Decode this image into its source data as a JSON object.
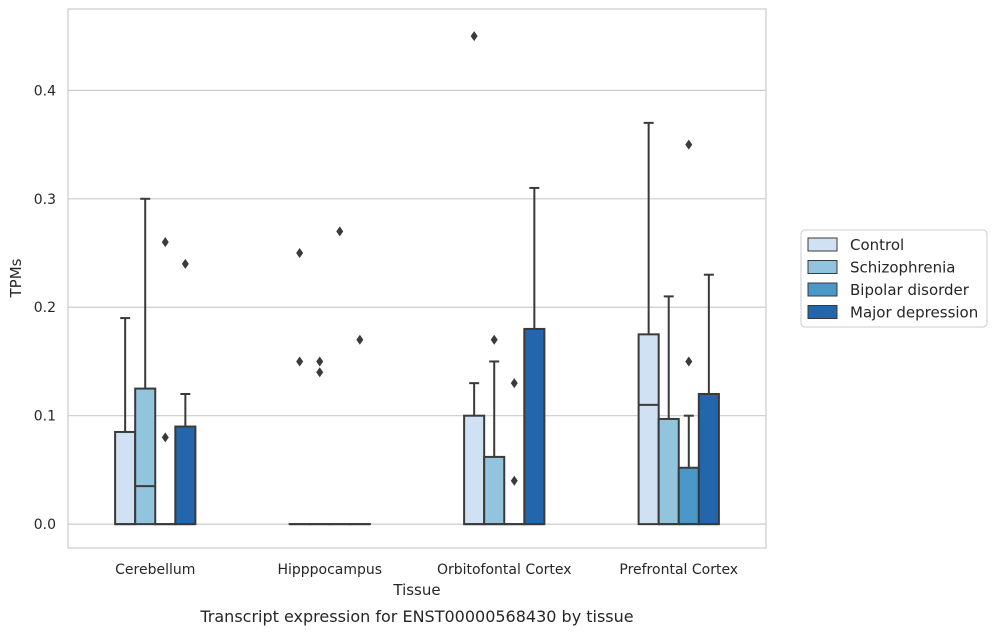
{
  "caption": "Transcript expression for ENST00000568430 by tissue",
  "chart_data": {
    "type": "boxplot",
    "xlabel": "Tissue",
    "ylabel": "TPMs",
    "ylim": [
      -0.022,
      0.475
    ],
    "yticks": [
      0.0,
      0.1,
      0.2,
      0.3,
      0.4
    ],
    "ytick_labels": [
      "0.0",
      "0.1",
      "0.2",
      "0.3",
      "0.4"
    ],
    "grid": "horizontal",
    "legend_position": "right",
    "categories": [
      "Cerebellum",
      "Hipppocampus",
      "Orbitofontal Cortex",
      "Prefrontal Cortex"
    ],
    "series": [
      {
        "name": "Control",
        "color": "#cfe1f2",
        "boxes": [
          {
            "q1": 0,
            "median": 0,
            "q3": 0.085,
            "whislo": 0,
            "whishi": 0.19,
            "fliers": []
          },
          {
            "q1": 0,
            "median": 0,
            "q3": 0,
            "whislo": 0,
            "whishi": 0,
            "fliers": [
              0.25,
              0.15
            ]
          },
          {
            "q1": 0,
            "median": 0,
            "q3": 0.1,
            "whislo": 0,
            "whishi": 0.13,
            "fliers": [
              0.45
            ]
          },
          {
            "q1": 0,
            "median": 0.11,
            "q3": 0.175,
            "whislo": 0,
            "whishi": 0.37,
            "fliers": []
          }
        ]
      },
      {
        "name": "Schizophrenia",
        "color": "#93c4de",
        "boxes": [
          {
            "q1": 0,
            "median": 0.035,
            "q3": 0.125,
            "whislo": 0,
            "whishi": 0.3,
            "fliers": []
          },
          {
            "q1": 0,
            "median": 0,
            "q3": 0,
            "whislo": 0,
            "whishi": 0,
            "fliers": [
              0.15,
              0.14
            ]
          },
          {
            "q1": 0,
            "median": 0,
            "q3": 0.062,
            "whislo": 0,
            "whishi": 0.15,
            "fliers": [
              0.17
            ]
          },
          {
            "q1": 0,
            "median": 0,
            "q3": 0.097,
            "whislo": 0,
            "whishi": 0.21,
            "fliers": []
          }
        ]
      },
      {
        "name": "Bipolar disorder",
        "color": "#4a98c9",
        "boxes": [
          {
            "q1": 0,
            "median": 0,
            "q3": 0,
            "whislo": 0,
            "whishi": 0,
            "fliers": [
              0.26,
              0.08
            ]
          },
          {
            "q1": 0,
            "median": 0,
            "q3": 0,
            "whislo": 0,
            "whishi": 0,
            "fliers": [
              0.27
            ]
          },
          {
            "q1": 0,
            "median": 0,
            "q3": 0,
            "whislo": 0,
            "whishi": 0,
            "fliers": [
              0.13,
              0.04
            ]
          },
          {
            "q1": 0,
            "median": 0,
            "q3": 0.052,
            "whislo": 0,
            "whishi": 0.1,
            "fliers": [
              0.35,
              0.15
            ]
          }
        ]
      },
      {
        "name": "Major depression",
        "color": "#2366ab",
        "boxes": [
          {
            "q1": 0,
            "median": 0,
            "q3": 0.09,
            "whislo": 0,
            "whishi": 0.12,
            "fliers": [
              0.24
            ]
          },
          {
            "q1": 0,
            "median": 0,
            "q3": 0,
            "whislo": 0,
            "whishi": 0,
            "fliers": [
              0.17
            ]
          },
          {
            "q1": 0,
            "median": 0,
            "q3": 0.18,
            "whislo": 0,
            "whishi": 0.31,
            "fliers": []
          },
          {
            "q1": 0,
            "median": 0,
            "q3": 0.12,
            "whislo": 0,
            "whishi": 0.23,
            "fliers": []
          }
        ]
      }
    ]
  },
  "colors": {
    "edge": "#3a3a3a",
    "grid": "#cccccc",
    "frame": "#cccccc"
  }
}
